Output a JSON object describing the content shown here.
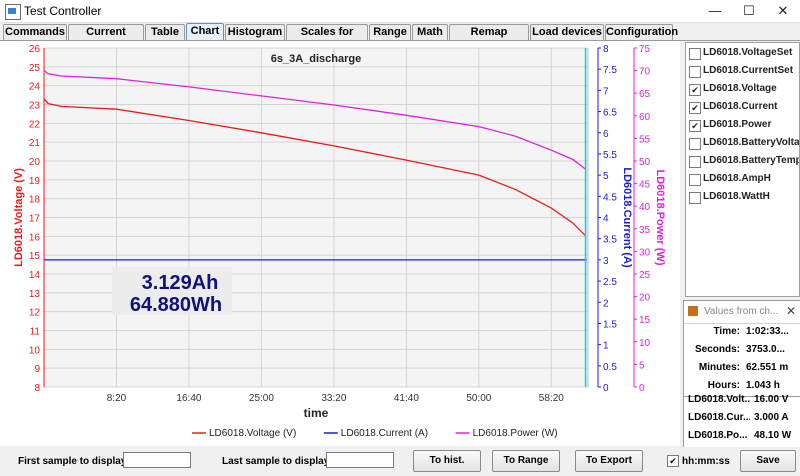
{
  "window": {
    "title": "Test Controller",
    "minimize": "—",
    "maximize": "☐",
    "close": "✕"
  },
  "tabs": [
    {
      "label": "Commands"
    },
    {
      "label": "Current values"
    },
    {
      "label": "Table"
    },
    {
      "label": "Chart",
      "active": true
    },
    {
      "label": "Histogram"
    },
    {
      "label": "Scales for chart"
    },
    {
      "label": "Range"
    },
    {
      "label": "Math"
    },
    {
      "label": "Remap handles"
    },
    {
      "label": "Load devices"
    },
    {
      "label": "Configuration"
    }
  ],
  "chart_data": {
    "type": "line",
    "title": "6s_3A_discharge",
    "xlabel": "time",
    "x_ticks": [
      "8:20",
      "16:40",
      "25:00",
      "33:20",
      "41:40",
      "50:00",
      "58:20"
    ],
    "x_tick_seconds": [
      500,
      1000,
      1500,
      2000,
      2500,
      3000,
      3500
    ],
    "x_range_seconds": [
      0,
      3753
    ],
    "axes": [
      {
        "label": "LD6018.Voltage (V)",
        "side": "left",
        "color": "#e81c1c",
        "range": [
          8,
          26
        ],
        "ticks": [
          "8",
          "9",
          "10",
          "11",
          "12",
          "13",
          "14",
          "15",
          "16",
          "17",
          "18",
          "19",
          "20",
          "21",
          "22",
          "23",
          "24",
          "25",
          "26"
        ]
      },
      {
        "label": "LD6018.Current (A)",
        "side": "right",
        "color": "#1c1ccc",
        "range": [
          0,
          8
        ],
        "ticks": [
          "0",
          "0.5",
          "1",
          "1.5",
          "2",
          "2.5",
          "3",
          "3.5",
          "4",
          "4.5",
          "5",
          "5.5",
          "6",
          "6.5",
          "7",
          "7.5",
          "8"
        ]
      },
      {
        "label": "LD6018.Power (W)",
        "side": "right",
        "color": "#dd22dd",
        "range": [
          0,
          75
        ],
        "ticks": [
          "0",
          "5",
          "10",
          "15",
          "20",
          "25",
          "30",
          "35",
          "40",
          "45",
          "50",
          "55",
          "60",
          "65",
          "70",
          "75"
        ]
      }
    ],
    "series": [
      {
        "name": "LD6018.Voltage (V)",
        "color": "#e81c1c",
        "axis": 0,
        "x": [
          0,
          30,
          120,
          500,
          1000,
          1500,
          2000,
          2500,
          3000,
          3250,
          3500,
          3650,
          3740
        ],
        "y": [
          23.3,
          23.05,
          22.9,
          22.75,
          22.15,
          21.5,
          20.8,
          20.05,
          19.25,
          18.5,
          17.5,
          16.7,
          16.0
        ]
      },
      {
        "name": "LD6018.Current (A)",
        "color": "#1c1ccc",
        "axis": 1,
        "x": [
          0,
          3745
        ],
        "y": [
          3.0,
          3.0
        ]
      },
      {
        "name": "LD6018.Power (W)",
        "color": "#dd22dd",
        "axis": 2,
        "x": [
          0,
          30,
          120,
          500,
          1000,
          1500,
          2000,
          2500,
          3000,
          3250,
          3500,
          3650,
          3740
        ],
        "y": [
          70.0,
          69.3,
          68.8,
          68.2,
          66.4,
          64.4,
          62.4,
          60.1,
          57.6,
          55.5,
          52.4,
          50.3,
          48.1
        ]
      }
    ],
    "cursor_x_seconds": 3750,
    "cursor_color": "#00d0e0",
    "annotation": [
      "3.129Ah",
      "64.880Wh"
    ],
    "legend_position": "bottom",
    "grid": true
  },
  "side_checks": [
    {
      "label": "LD6018.VoltageSet",
      "checked": false
    },
    {
      "label": "LD6018.CurrentSet",
      "checked": false
    },
    {
      "label": "LD6018.Voltage",
      "checked": true
    },
    {
      "label": "LD6018.Current",
      "checked": true
    },
    {
      "label": "LD6018.Power",
      "checked": true
    },
    {
      "label": "LD6018.BatteryVoltage",
      "checked": false
    },
    {
      "label": "LD6018.BatteryTemp",
      "checked": false
    },
    {
      "label": "LD6018.AmpH",
      "checked": false
    },
    {
      "label": "LD6018.WattH",
      "checked": false
    }
  ],
  "values_window": {
    "title": "Values from ch...",
    "rows": [
      {
        "key": "Time:",
        "value": "1:02:33..."
      },
      {
        "key": "Seconds:",
        "value": "3753.0..."
      },
      {
        "key": "Minutes:",
        "value": "62.551 m"
      },
      {
        "key": "Hours:",
        "value": "1.043 h"
      }
    ],
    "series_rows": [
      {
        "key": "LD6018.Volt...",
        "value": "16.00 V"
      },
      {
        "key": "LD6018.Cur...",
        "value": "3.000 A"
      },
      {
        "key": "LD6018.Po...",
        "value": "48.10 W"
      }
    ]
  },
  "bottom": {
    "first_label": "First sample to display:",
    "first_value": "",
    "last_label": "Last sample to display:",
    "last_value": "",
    "to_hist": "To hist.",
    "to_range": "To Range",
    "to_export": "To Export",
    "hhmmss_label": "hh:mm:ss",
    "hhmmss_checked": "✔",
    "save": "Save"
  }
}
